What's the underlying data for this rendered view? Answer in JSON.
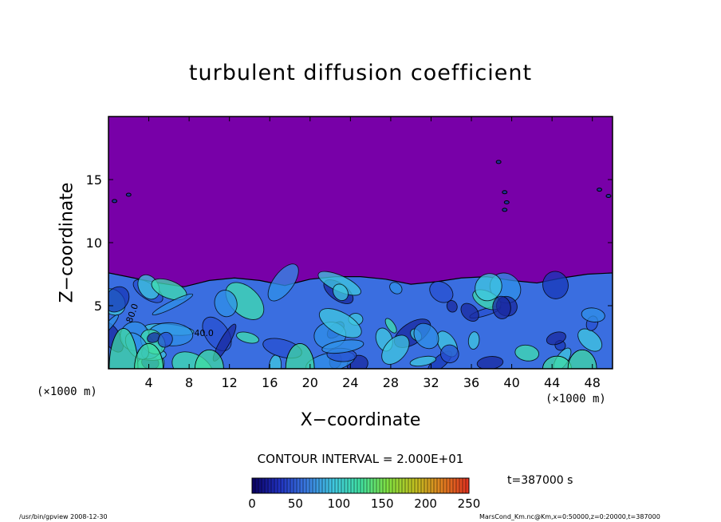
{
  "chart_data": {
    "type": "heatmap",
    "title": "turbulent diffusion coefficient",
    "xlabel": "X−coordinate",
    "ylabel": "Z−coordinate",
    "x_unit": "(×1000 m)",
    "y_unit": "(×1000 m)",
    "xlim": [
      0,
      50
    ],
    "ylim": [
      0,
      20
    ],
    "x_ticks": [
      4,
      8,
      12,
      16,
      20,
      24,
      28,
      32,
      36,
      40,
      44,
      48
    ],
    "y_ticks": [
      5,
      10,
      15
    ],
    "contour_interval": "CONTOUR INTERVAL = 2.000E+01",
    "contour_labels": [
      "80.0",
      "40.0"
    ],
    "colorbar": {
      "min": 0,
      "max": 250,
      "ticks": [
        0,
        50,
        100,
        150,
        200,
        250
      ],
      "colors": [
        "#0a0060",
        "#2030c0",
        "#3a7ae0",
        "#40c8e0",
        "#40e0a0",
        "#80e040",
        "#c0c020",
        "#e08020",
        "#e03020"
      ]
    },
    "background_color": "#7800a8",
    "mixed_layer_top_km": [
      7.6,
      7.2,
      6.8,
      6.5,
      7.0,
      7.2,
      7.0,
      6.6,
      7.1,
      7.3,
      7.3,
      7.1,
      6.7,
      6.9,
      7.2,
      7.3,
      7.0,
      6.8,
      7.2,
      7.5,
      7.6
    ],
    "mixed_layer_x_km": [
      0,
      2.5,
      5,
      7.5,
      10,
      12.5,
      15,
      17.5,
      20,
      22.5,
      25,
      27.5,
      30,
      32.5,
      35,
      37.5,
      40,
      42.5,
      45,
      47.5,
      50
    ],
    "time_label": "t=387000 s"
  },
  "footer": {
    "left": "/usr/bin/gpview   2008-12-30",
    "right": "MarsCond_Km.nc@Km,x=0:50000,z=0:20000,t=387000"
  }
}
